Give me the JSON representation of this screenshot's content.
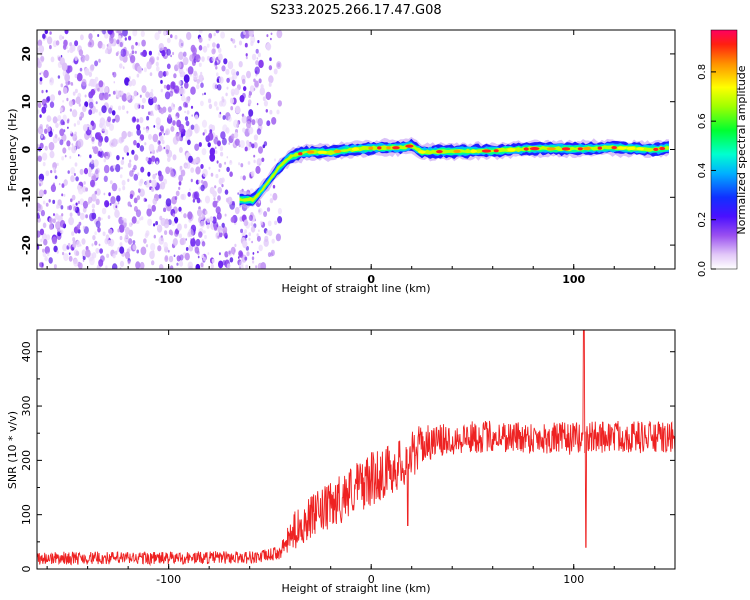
{
  "chart_data": [
    {
      "type": "heatmap",
      "title": "S233.2025.266.17.47.G08",
      "xlabel": "Height of straight line (km)",
      "ylabel": "Frequency (Hz)",
      "xlim": [
        -165,
        150
      ],
      "ylim": [
        -25,
        25
      ],
      "xticks": [
        -100,
        0,
        100
      ],
      "yticks": [
        -20,
        -10,
        0,
        10,
        20
      ],
      "colorbar": {
        "label": "Normalized spectral amplitude",
        "ticks": [
          "0.0",
          "0.2",
          "0.4",
          "0.6",
          "0.8"
        ],
        "range": [
          0,
          0.97
        ],
        "colors": [
          "#ffffff",
          "#d9b8f5",
          "#a05cf0",
          "#6a1cf0",
          "#1010ff",
          "#00a0ff",
          "#00ffd0",
          "#00ff40",
          "#a0ff00",
          "#ffff00",
          "#ffa000",
          "#ff3000",
          "#ff0050"
        ]
      },
      "ridge": {
        "description": "signal frequency vs height",
        "points": [
          [
            -65,
            -10.5
          ],
          [
            -58,
            -10.5
          ],
          [
            -52,
            -7.5
          ],
          [
            -46,
            -4
          ],
          [
            -40,
            -1.5
          ],
          [
            -32,
            -0.5
          ],
          [
            -20,
            -0.6
          ],
          [
            -10,
            0
          ],
          [
            0,
            0.3
          ],
          [
            15,
            0.4
          ],
          [
            20,
            0.8
          ],
          [
            25,
            -0.5
          ],
          [
            40,
            -0.4
          ],
          [
            60,
            -0.3
          ],
          [
            80,
            0.2
          ],
          [
            100,
            0.1
          ],
          [
            120,
            0.4
          ],
          [
            140,
            0
          ],
          [
            147,
            0.4
          ]
        ]
      },
      "noise_region": [
        -165,
        -45
      ]
    },
    {
      "type": "line",
      "xlabel": "Height of straight line (km)",
      "ylabel": "SNR (10 * v/v)",
      "xlim": [
        -165,
        150
      ],
      "ylim": [
        0,
        440
      ],
      "xticks": [
        -100,
        0,
        100
      ],
      "yticks": [
        0,
        100,
        200,
        300,
        400
      ],
      "series": [
        {
          "name": "SNR",
          "color": "#ee2222",
          "envelope": [
            [
              -165,
              20
            ],
            [
              -100,
              20
            ],
            [
              -55,
              22
            ],
            [
              -45,
              30
            ],
            [
              -38,
              70
            ],
            [
              -30,
              95
            ],
            [
              -20,
              115
            ],
            [
              -10,
              145
            ],
            [
              0,
              165
            ],
            [
              10,
              185
            ],
            [
              18,
              200
            ],
            [
              25,
              230
            ],
            [
              40,
              240
            ],
            [
              60,
              245
            ],
            [
              80,
              242
            ],
            [
              100,
              240
            ],
            [
              120,
              245
            ],
            [
              140,
              242
            ],
            [
              150,
              240
            ]
          ],
          "noise_amplitude": [
            [
              -165,
              12
            ],
            [
              -45,
              12
            ],
            [
              -38,
              35
            ],
            [
              -20,
              45
            ],
            [
              0,
              50
            ],
            [
              20,
              45
            ],
            [
              30,
              30
            ],
            [
              150,
              30
            ]
          ],
          "spikes": [
            [
              18,
              80
            ],
            [
              105,
              440
            ],
            [
              106,
              40
            ]
          ]
        }
      ]
    }
  ]
}
